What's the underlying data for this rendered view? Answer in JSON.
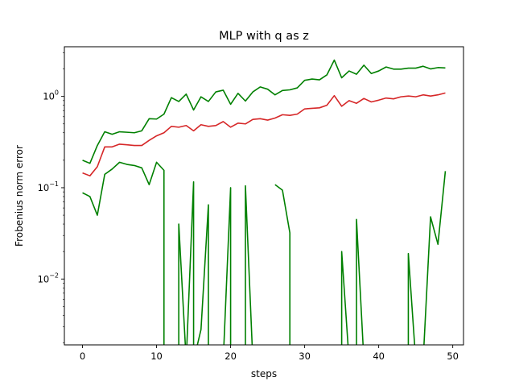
{
  "chart_data": {
    "type": "line",
    "title": "MLP with q as z",
    "xlabel": "steps",
    "ylabel": "Frobenius norm error",
    "xlim": [
      -2.45,
      51.45
    ],
    "ylim": [
      0.0019,
      3.5
    ],
    "yscale": "log",
    "x_ticks": [
      0,
      10,
      20,
      30,
      40,
      50
    ],
    "x_tick_labels": [
      "0",
      "10",
      "20",
      "30",
      "40",
      "50"
    ],
    "y_ticks": [
      0.01,
      0.1,
      1
    ],
    "y_tick_labels": [
      {
        "base": "10",
        "exp": "−2"
      },
      {
        "base": "10",
        "exp": "−1"
      },
      {
        "base": "10",
        "exp": "0"
      }
    ],
    "grid": false,
    "colors": {
      "mean": "#d62728",
      "bounds": "#008000"
    },
    "series": [
      {
        "role": "mean",
        "color": "#d62728",
        "x": [
          0,
          1,
          2,
          3,
          4,
          5,
          6,
          7,
          8,
          9,
          10,
          11,
          12,
          13,
          14,
          15,
          16,
          17,
          18,
          19,
          20,
          21,
          22,
          23,
          24,
          25,
          26,
          27,
          28,
          29,
          30,
          31,
          32,
          33,
          34,
          35,
          36,
          37,
          38,
          39,
          40,
          41,
          42,
          43,
          44,
          45,
          46,
          47,
          48,
          49
        ],
        "values": [
          0.145,
          0.135,
          0.17,
          0.28,
          0.28,
          0.3,
          0.295,
          0.29,
          0.29,
          0.33,
          0.37,
          0.4,
          0.47,
          0.46,
          0.48,
          0.42,
          0.49,
          0.47,
          0.48,
          0.53,
          0.46,
          0.51,
          0.5,
          0.56,
          0.57,
          0.55,
          0.58,
          0.63,
          0.62,
          0.64,
          0.73,
          0.74,
          0.75,
          0.8,
          1.02,
          0.78,
          0.9,
          0.84,
          0.95,
          0.87,
          0.91,
          0.96,
          0.94,
          0.99,
          1.01,
          0.99,
          1.04,
          1.01,
          1.04,
          1.09
        ]
      },
      {
        "role": "upper",
        "color": "#008000",
        "x": [
          0,
          1,
          2,
          3,
          4,
          5,
          6,
          7,
          8,
          9,
          10,
          11,
          12,
          13,
          14,
          15,
          16,
          17,
          18,
          19,
          20,
          21,
          22,
          23,
          24,
          25,
          26,
          27,
          28,
          29,
          30,
          31,
          32,
          33,
          34,
          35,
          36,
          37,
          38,
          39,
          40,
          41,
          42,
          43,
          44,
          45,
          46,
          47,
          48,
          49
        ],
        "values": [
          0.2,
          0.185,
          0.29,
          0.41,
          0.385,
          0.41,
          0.405,
          0.4,
          0.42,
          0.57,
          0.565,
          0.64,
          0.97,
          0.88,
          1.06,
          0.71,
          0.99,
          0.88,
          1.12,
          1.17,
          0.82,
          1.08,
          0.89,
          1.12,
          1.27,
          1.2,
          1.04,
          1.16,
          1.18,
          1.24,
          1.5,
          1.55,
          1.52,
          1.72,
          2.5,
          1.6,
          1.9,
          1.75,
          2.2,
          1.78,
          1.9,
          2.1,
          1.99,
          1.99,
          2.04,
          2.04,
          2.14,
          2.0,
          2.07,
          2.05
        ]
      },
      {
        "role": "lower",
        "color": "#008000",
        "x": [
          0,
          1,
          2,
          3,
          4,
          5,
          6,
          7,
          8,
          9,
          10,
          11,
          11,
          12,
          13,
          13,
          14,
          15,
          15,
          16,
          17,
          17,
          18,
          19,
          20,
          20,
          21,
          22,
          22,
          23,
          24,
          25,
          26,
          27,
          28,
          28,
          29,
          30,
          31,
          32,
          33,
          34,
          35,
          35,
          36,
          37,
          37,
          38,
          39,
          40,
          41,
          42,
          43,
          44,
          44,
          45,
          46,
          47,
          48,
          49
        ],
        "values": [
          0.088,
          0.08,
          0.05,
          0.14,
          0.16,
          0.19,
          0.18,
          0.175,
          0.165,
          0.108,
          0.19,
          0.155,
          0.0001,
          null,
          0.0001,
          0.04,
          0.0001,
          0.116,
          0.0001,
          0.0028,
          0.065,
          0.0001,
          null,
          0.0001,
          0.1,
          0.0001,
          null,
          0.0001,
          0.105,
          0.0001,
          null,
          null,
          0.108,
          0.094,
          0.032,
          0.0001,
          null,
          null,
          null,
          null,
          null,
          null,
          0.0001,
          0.02,
          0.0001,
          0.0001,
          0.045,
          0.0001,
          null,
          null,
          null,
          null,
          null,
          0.0001,
          0.019,
          0.0001,
          0.0001,
          0.048,
          0.024,
          0.152
        ]
      }
    ]
  }
}
